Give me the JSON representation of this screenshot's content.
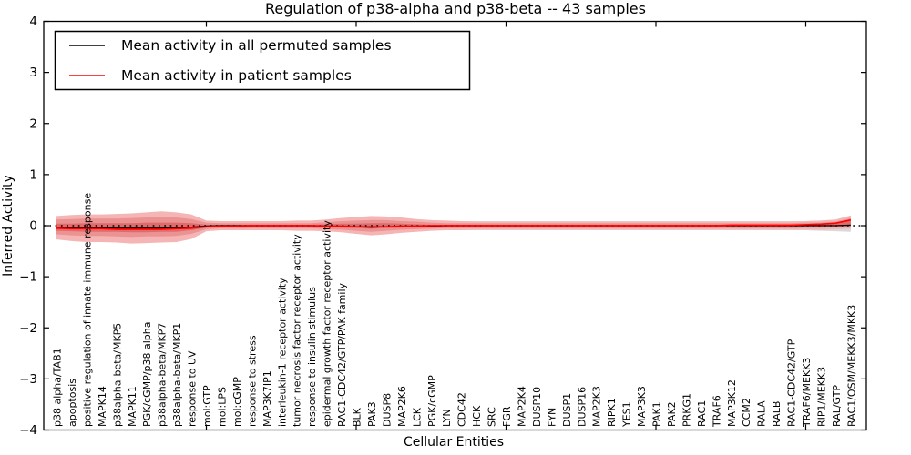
{
  "chart_data": {
    "type": "line",
    "title": "Regulation of p38-alpha and p38-beta -- 43 samples",
    "xlabel": "Cellular Entities",
    "ylabel": "Inferred Activity",
    "ylim": [
      -4,
      4
    ],
    "yticks": [
      4,
      3,
      2,
      1,
      0,
      -1,
      -2,
      -3,
      -4
    ],
    "xtick_entity_indices": [
      10,
      20,
      30,
      40,
      50
    ],
    "grid": false,
    "legend_position": "upper left",
    "zero_line": {
      "y": 0,
      "style": "dotted",
      "color": "#000000"
    },
    "categories": [
      "p38 alpha/TAB1",
      "apoptosis",
      "positive regulation of innate immune response",
      "MAPK14",
      "p38alpha-beta/MKP5",
      "MAPK11",
      "PGK/cGMP/p38 alpha",
      "p38alpha-beta/MKP7",
      "p38alpha-beta/MKP1",
      "response to UV",
      "mol:GTP",
      "mol:LPS",
      "mol:cGMP",
      "response to stress",
      "MAP3K7IP1",
      "interleukin-1 receptor activity",
      "tumor necrosis factor receptor activity",
      "response to insulin stimulus",
      "epidermal growth factor receptor activity",
      "RAC1-CDC42/GTP/PAK family",
      "BLK",
      "PAK3",
      "DUSP8",
      "MAP2K6",
      "LCK",
      "PGK/cGMP",
      "LYN",
      "CDC42",
      "HCK",
      "SRC",
      "FGR",
      "MAP2K4",
      "DUSP10",
      "FYN",
      "DUSP1",
      "DUSP16",
      "MAP2K3",
      "RIPK1",
      "YES1",
      "MAP3K3",
      "PAK1",
      "PAK2",
      "PRKG1",
      "RAC1",
      "TRAF6",
      "MAP3K12",
      "CCM2",
      "RALA",
      "RALB",
      "RAC1-CDC42/GTP",
      "TRAF6/MEKK3",
      "RIP1/MEKK3",
      "RAL/GTP",
      "RAC1/OSM/MEKK3/MKK3"
    ],
    "series": [
      {
        "key": "mean-permuted",
        "name": "Mean activity in all permuted samples",
        "color": "#000000",
        "values": [
          -0.03,
          -0.04,
          -0.04,
          -0.04,
          -0.05,
          -0.05,
          -0.05,
          -0.05,
          -0.04,
          -0.03,
          -0.01,
          0.0,
          0.0,
          0.0,
          0.0,
          0.0,
          0.0,
          0.0,
          -0.01,
          -0.02,
          -0.02,
          -0.03,
          -0.02,
          -0.02,
          -0.01,
          -0.01,
          0.0,
          0.0,
          0.0,
          0.0,
          0.0,
          0.0,
          0.0,
          0.0,
          0.0,
          0.0,
          0.0,
          0.0,
          0.0,
          0.0,
          0.0,
          0.0,
          0.0,
          0.0,
          0.0,
          0.0,
          0.0,
          0.0,
          0.0,
          0.0,
          0.0,
          0.0,
          0.0,
          0.01
        ]
      },
      {
        "key": "mean-patient",
        "name": "Mean activity in patient samples",
        "color": "#ff0000",
        "values": [
          -0.05,
          -0.06,
          -0.06,
          -0.06,
          -0.07,
          -0.07,
          -0.07,
          -0.07,
          -0.06,
          -0.05,
          -0.02,
          -0.01,
          -0.01,
          0.0,
          0.0,
          0.0,
          0.0,
          0.0,
          -0.01,
          -0.01,
          -0.02,
          -0.02,
          -0.02,
          -0.01,
          -0.01,
          0.0,
          0.0,
          0.0,
          0.0,
          0.0,
          0.0,
          0.0,
          0.0,
          0.0,
          0.0,
          0.0,
          0.0,
          0.0,
          0.0,
          0.0,
          0.0,
          0.0,
          0.0,
          0.0,
          0.0,
          0.01,
          0.01,
          0.01,
          0.01,
          0.01,
          0.02,
          0.03,
          0.05,
          0.11
        ]
      }
    ],
    "bands": [
      {
        "key": "permuted-sample-range",
        "color": "#d9d9d9",
        "upper": [
          0.09,
          0.09,
          0.09,
          0.09,
          0.09,
          0.09,
          0.09,
          0.09,
          0.09,
          0.09,
          0.09,
          0.09,
          0.09,
          0.09,
          0.09,
          0.09,
          0.09,
          0.09,
          0.09,
          0.09,
          0.09,
          0.09,
          0.09,
          0.09,
          0.09,
          0.09,
          0.09,
          0.09,
          0.09,
          0.09,
          0.09,
          0.09,
          0.09,
          0.09,
          0.09,
          0.09,
          0.09,
          0.09,
          0.09,
          0.09,
          0.09,
          0.09,
          0.09,
          0.09,
          0.09,
          0.09,
          0.09,
          0.09,
          0.09,
          0.09,
          0.09,
          0.1,
          0.12,
          0.2
        ],
        "lower": [
          -0.09,
          -0.09,
          -0.09,
          -0.09,
          -0.09,
          -0.09,
          -0.09,
          -0.09,
          -0.09,
          -0.09,
          -0.09,
          -0.09,
          -0.09,
          -0.09,
          -0.09,
          -0.09,
          -0.09,
          -0.09,
          -0.09,
          -0.09,
          -0.09,
          -0.09,
          -0.09,
          -0.09,
          -0.09,
          -0.09,
          -0.09,
          -0.09,
          -0.09,
          -0.09,
          -0.09,
          -0.09,
          -0.09,
          -0.09,
          -0.09,
          -0.09,
          -0.09,
          -0.09,
          -0.09,
          -0.09,
          -0.09,
          -0.09,
          -0.09,
          -0.09,
          -0.09,
          -0.09,
          -0.09,
          -0.09,
          -0.09,
          -0.09,
          -0.09,
          -0.1,
          -0.11,
          -0.12
        ]
      },
      {
        "key": "patient-range-outer",
        "color": "#f5b5b5",
        "upper": [
          0.19,
          0.21,
          0.22,
          0.22,
          0.23,
          0.24,
          0.26,
          0.28,
          0.26,
          0.22,
          0.1,
          0.09,
          0.09,
          0.09,
          0.09,
          0.09,
          0.1,
          0.1,
          0.12,
          0.15,
          0.17,
          0.19,
          0.18,
          0.16,
          0.13,
          0.11,
          0.1,
          0.09,
          0.08,
          0.08,
          0.08,
          0.08,
          0.08,
          0.08,
          0.08,
          0.08,
          0.08,
          0.08,
          0.08,
          0.08,
          0.08,
          0.08,
          0.08,
          0.08,
          0.08,
          0.08,
          0.08,
          0.08,
          0.08,
          0.08,
          0.09,
          0.1,
          0.12,
          0.2
        ],
        "lower": [
          -0.27,
          -0.3,
          -0.32,
          -0.32,
          -0.33,
          -0.35,
          -0.34,
          -0.33,
          -0.32,
          -0.26,
          -0.11,
          -0.09,
          -0.09,
          -0.09,
          -0.09,
          -0.09,
          -0.1,
          -0.1,
          -0.11,
          -0.13,
          -0.16,
          -0.19,
          -0.17,
          -0.14,
          -0.12,
          -0.1,
          -0.09,
          -0.09,
          -0.08,
          -0.08,
          -0.08,
          -0.08,
          -0.08,
          -0.08,
          -0.08,
          -0.08,
          -0.08,
          -0.08,
          -0.08,
          -0.08,
          -0.08,
          -0.08,
          -0.08,
          -0.08,
          -0.08,
          -0.08,
          -0.08,
          -0.08,
          -0.08,
          -0.08,
          -0.08,
          -0.08,
          -0.07,
          -0.06
        ]
      },
      {
        "key": "patient-range-mid",
        "color": "#eb9393",
        "upper": [
          0.12,
          0.13,
          0.14,
          0.14,
          0.14,
          0.15,
          0.16,
          0.17,
          0.16,
          0.13,
          0.06,
          0.05,
          0.05,
          0.05,
          0.05,
          0.05,
          0.05,
          0.05,
          0.07,
          0.09,
          0.1,
          0.11,
          0.11,
          0.09,
          0.08,
          0.06,
          0.05,
          0.05,
          0.05,
          0.05,
          0.05,
          0.05,
          0.05,
          0.05,
          0.05,
          0.05,
          0.05,
          0.05,
          0.05,
          0.05,
          0.05,
          0.05,
          0.05,
          0.05,
          0.05,
          0.05,
          0.05,
          0.05,
          0.05,
          0.05,
          0.06,
          0.06,
          0.08,
          0.15
        ],
        "lower": [
          -0.17,
          -0.19,
          -0.2,
          -0.2,
          -0.21,
          -0.22,
          -0.21,
          -0.21,
          -0.2,
          -0.16,
          -0.07,
          -0.05,
          -0.05,
          -0.05,
          -0.05,
          -0.05,
          -0.05,
          -0.05,
          -0.07,
          -0.08,
          -0.1,
          -0.12,
          -0.1,
          -0.08,
          -0.07,
          -0.06,
          -0.05,
          -0.05,
          -0.05,
          -0.05,
          -0.05,
          -0.05,
          -0.05,
          -0.05,
          -0.05,
          -0.05,
          -0.05,
          -0.05,
          -0.05,
          -0.05,
          -0.05,
          -0.05,
          -0.05,
          -0.05,
          -0.05,
          -0.05,
          -0.05,
          -0.05,
          -0.05,
          -0.05,
          -0.04,
          -0.04,
          -0.03,
          -0.02
        ]
      },
      {
        "key": "patient-range-inner",
        "color": "#e06b6b",
        "upper": [
          0.04,
          0.04,
          0.05,
          0.05,
          0.05,
          0.05,
          0.06,
          0.06,
          0.06,
          0.05,
          0.02,
          0.02,
          0.02,
          0.02,
          0.02,
          0.02,
          0.02,
          0.02,
          0.03,
          0.04,
          0.04,
          0.05,
          0.05,
          0.04,
          0.03,
          0.02,
          0.02,
          0.02,
          0.02,
          0.02,
          0.02,
          0.02,
          0.02,
          0.02,
          0.02,
          0.02,
          0.02,
          0.02,
          0.02,
          0.02,
          0.02,
          0.02,
          0.02,
          0.02,
          0.02,
          0.02,
          0.02,
          0.02,
          0.02,
          0.02,
          0.03,
          0.04,
          0.05,
          0.13
        ],
        "lower": [
          -0.1,
          -0.11,
          -0.12,
          -0.12,
          -0.12,
          -0.13,
          -0.13,
          -0.12,
          -0.12,
          -0.09,
          -0.04,
          -0.02,
          -0.02,
          -0.02,
          -0.02,
          -0.02,
          -0.02,
          -0.02,
          -0.03,
          -0.04,
          -0.05,
          -0.06,
          -0.05,
          -0.04,
          -0.03,
          -0.02,
          -0.02,
          -0.02,
          -0.02,
          -0.02,
          -0.02,
          -0.02,
          -0.02,
          -0.02,
          -0.02,
          -0.02,
          -0.02,
          -0.02,
          -0.02,
          -0.02,
          -0.02,
          -0.02,
          -0.02,
          -0.02,
          -0.02,
          -0.02,
          -0.02,
          -0.02,
          -0.02,
          -0.02,
          -0.01,
          -0.01,
          0.0,
          0.02
        ]
      }
    ]
  }
}
